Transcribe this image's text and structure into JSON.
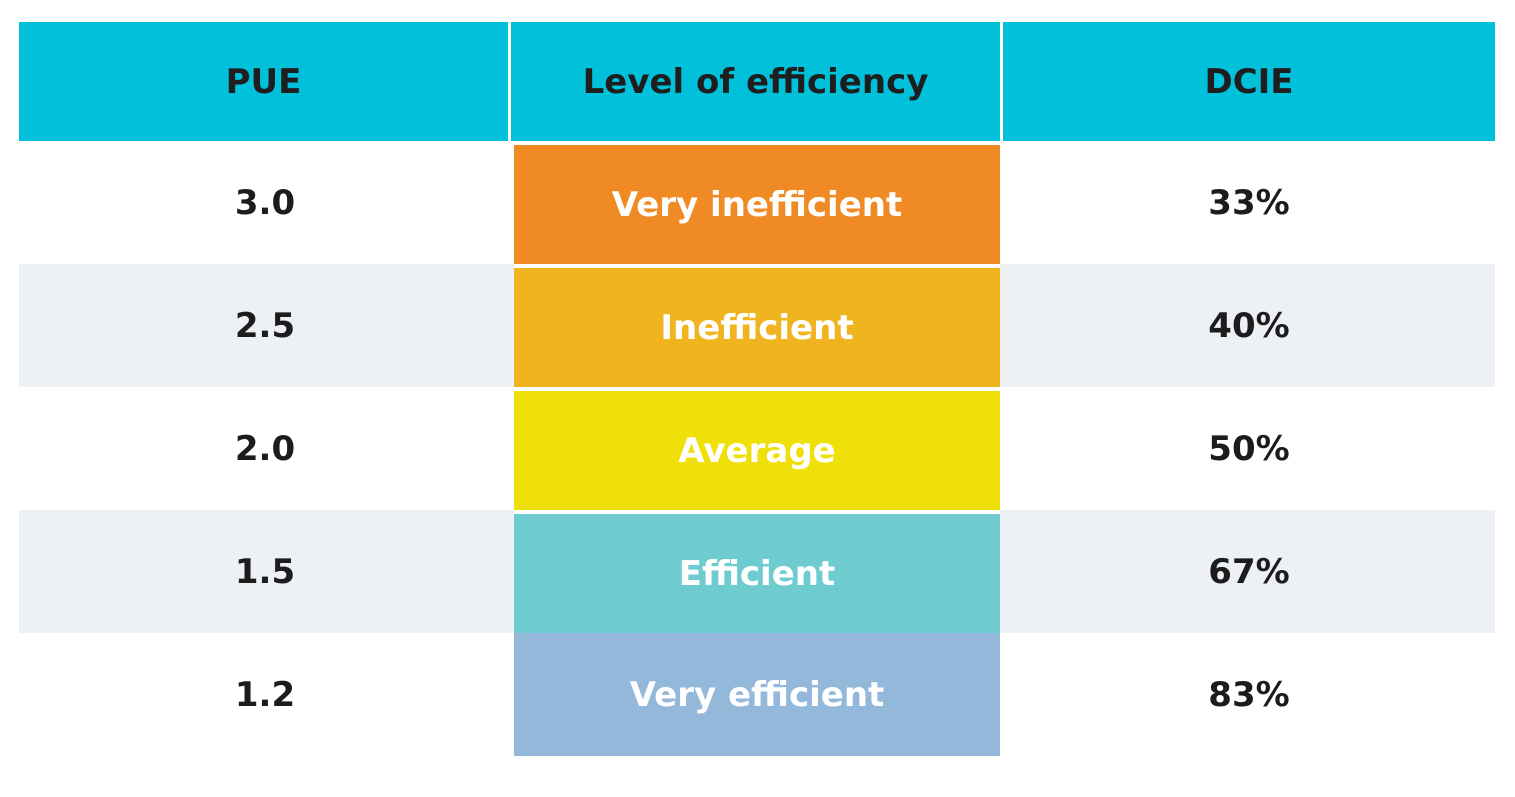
{
  "chart_data": {
    "type": "table",
    "columns": [
      "PUE",
      "Level of efficiency",
      "DCIE"
    ],
    "rows": [
      {
        "pue": "3.0",
        "level": "Very inefficient",
        "dcie": "33%",
        "color": "#f08a24"
      },
      {
        "pue": "2.5",
        "level": "Inefficient",
        "dcie": "40%",
        "color": "#f0b41e"
      },
      {
        "pue": "2.0",
        "level": "Average",
        "dcie": "50%",
        "color": "#f0e00a"
      },
      {
        "pue": "1.5",
        "level": "Efficient",
        "dcie": "67%",
        "color": "#6ecbd0"
      },
      {
        "pue": "1.2",
        "level": "Very efficient",
        "dcie": "83%",
        "color": "#93b8d9"
      }
    ]
  },
  "colors": {
    "header_bg": "#00c0da",
    "alt_row_bg": "#edf0f5"
  }
}
